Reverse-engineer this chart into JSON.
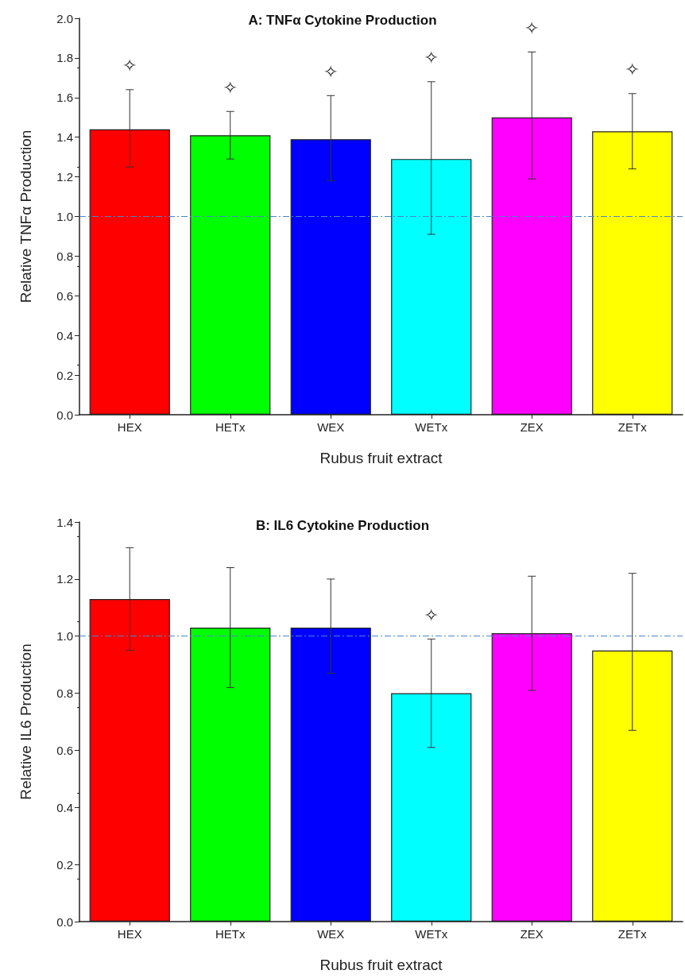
{
  "chart_data": [
    {
      "type": "bar",
      "title": "A: TNFα Cytokine Production",
      "xlabel": "Rubus fruit extract",
      "ylabel": "Relative TNFα Production",
      "categories": [
        "HEX",
        "HETx",
        "WEX",
        "WETx",
        "ZEX",
        "ZETx"
      ],
      "values": [
        1.44,
        1.41,
        1.39,
        1.29,
        1.5,
        1.43
      ],
      "colors": [
        "#ff0000",
        "#00ff00",
        "#0000ff",
        "#00ffff",
        "#ff00ff",
        "#ffff00"
      ],
      "errors": [
        [
          1.25,
          1.64
        ],
        [
          1.29,
          1.53
        ],
        [
          1.18,
          1.61
        ],
        [
          0.91,
          1.68
        ],
        [
          1.19,
          1.83
        ],
        [
          1.24,
          1.62
        ]
      ],
      "ylim": [
        0,
        2
      ],
      "yticks": [
        {
          "value": 0,
          "label": "0.0"
        },
        0.2,
        0.4,
        0.6,
        0.8,
        {
          "value": 1,
          "label": "1.0"
        },
        1.2,
        1.4,
        1.6,
        1.8,
        {
          "value": 2,
          "label": "2.0"
        }
      ],
      "ref_lines": [
        {
          "axis": "y",
          "value": 1,
          "color": "#4a86c8",
          "line_style": "dashed"
        }
      ],
      "annotations": [
        {
          "text": "✧",
          "x": "HEX",
          "y": 1.64
        },
        {
          "text": "✧",
          "x": "HETx",
          "y": 1.53
        },
        {
          "text": "✧",
          "x": "WEX",
          "y": 1.61
        },
        {
          "text": "✧",
          "x": "WETx",
          "y": 1.68
        },
        {
          "text": "✧",
          "x": "ZEX",
          "y": 1.83
        },
        {
          "text": "✧",
          "x": "ZETx",
          "y": 1.62
        }
      ],
      "grid": false
    },
    {
      "type": "bar",
      "title": "B: IL6 Cytokine Production",
      "xlabel": "Rubus fruit extract",
      "ylabel": "Relative IL6 Production",
      "categories": [
        "HEX",
        "HETx",
        "WEX",
        "WETx",
        "ZEX",
        "ZETx"
      ],
      "values": [
        1.13,
        1.03,
        1.03,
        0.8,
        1.01,
        0.95
      ],
      "colors": [
        "#ff0000",
        "#00ff00",
        "#0000ff",
        "#00ffff",
        "#ff00ff",
        "#ffff00"
      ],
      "errors": [
        [
          0.95,
          1.31
        ],
        [
          0.82,
          1.24
        ],
        [
          0.87,
          1.2
        ],
        [
          0.61,
          0.99
        ],
        [
          0.81,
          1.21
        ],
        [
          0.67,
          1.22
        ]
      ],
      "ylim": [
        0,
        1.4
      ],
      "yticks": [
        {
          "value": 0,
          "label": "0.0"
        },
        0.2,
        0.4,
        0.6,
        0.8,
        {
          "value": 1,
          "label": "1.0"
        },
        1.2,
        1.4
      ],
      "ref_lines": [
        {
          "axis": "y",
          "value": 1,
          "color": "#4a86c8",
          "line_style": "dashed"
        }
      ],
      "annotations": [
        {
          "text": "✧",
          "x": "WETx",
          "y": 0.99
        }
      ],
      "grid": false
    }
  ]
}
